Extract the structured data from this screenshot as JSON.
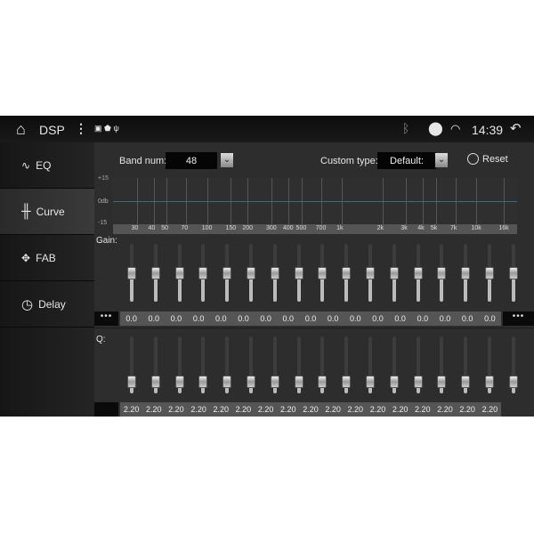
{
  "status": {
    "title": "DSP",
    "time": "14:39",
    "icons": [
      "home-icon",
      "more-icon",
      "image-icon",
      "shield-icon",
      "usb-icon",
      "bluetooth-icon",
      "location-icon",
      "wifi-icon",
      "back-icon"
    ]
  },
  "sidebar": {
    "items": [
      {
        "label": "EQ",
        "icon": "waveform-icon"
      },
      {
        "label": "Curve",
        "icon": "sliders-icon",
        "active": true
      },
      {
        "label": "FAB",
        "icon": "fader-balance-icon"
      },
      {
        "label": "Delay",
        "icon": "clock-icon"
      }
    ]
  },
  "controls": {
    "band_label": "Band num:",
    "band_value": "48",
    "custom_label": "Custom type:",
    "custom_value": "Default:",
    "reset_label": "Reset"
  },
  "graph": {
    "y_labels": [
      "+15",
      "0db",
      "-15"
    ],
    "x_labels": [
      "30",
      "40",
      "50",
      "70",
      "100",
      "150",
      "200",
      "300",
      "400",
      "500",
      "700",
      "1k",
      "2k",
      "3k",
      "4k",
      "5k",
      "7k",
      "10k",
      "16k"
    ]
  },
  "gain": {
    "label": "Gain:",
    "values": [
      "0.0",
      "0.0",
      "0.0",
      "0.0",
      "0.0",
      "0.0",
      "0.0",
      "0.0",
      "0.0",
      "0.0",
      "0.0",
      "0.0",
      "0.0",
      "0.0",
      "0.0",
      "0.0",
      "0.0"
    ],
    "level": 0.5
  },
  "q": {
    "label": "Q:",
    "values": [
      "2.20",
      "2.20",
      "2.20",
      "2.20",
      "2.20",
      "2.20",
      "2.20",
      "2.20",
      "2.20",
      "2.20",
      "2.20",
      "2.20",
      "2.20",
      "2.20",
      "2.20",
      "2.20",
      "2.20"
    ],
    "level": 0.2
  },
  "more_label": "•••"
}
